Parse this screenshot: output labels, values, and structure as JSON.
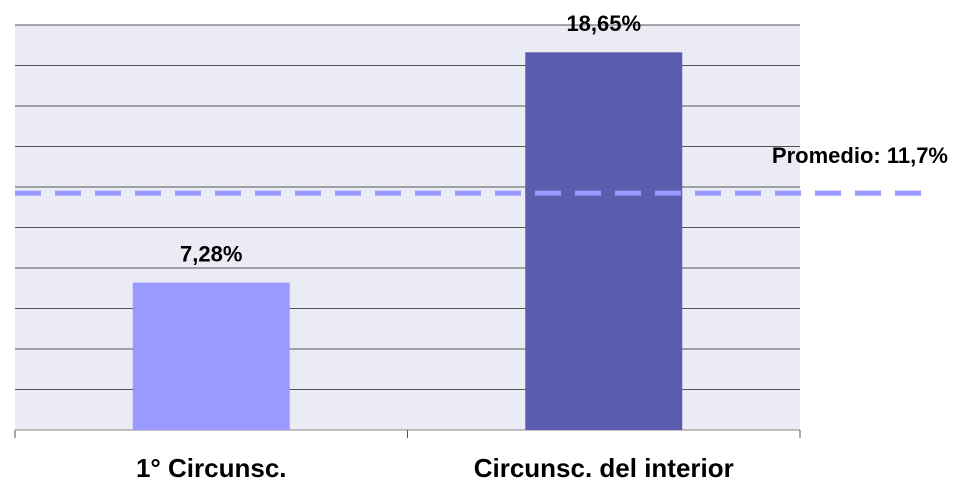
{
  "chart_data": {
    "type": "bar",
    "categories": [
      "1° Circunsc.",
      "Circunsc. del interior"
    ],
    "values": [
      7.28,
      18.65
    ],
    "value_labels": [
      "7,28%",
      "18,65%"
    ],
    "colors": [
      "#9999ff",
      "#5b5cad"
    ],
    "ylim": [
      0,
      20
    ],
    "yticks": [
      0,
      2,
      4,
      6,
      8,
      10,
      12,
      14,
      16,
      18,
      20
    ],
    "grid": true,
    "average": {
      "value": 11.7,
      "label": "Promedio: 11,7%",
      "color": "#9999ff"
    }
  }
}
